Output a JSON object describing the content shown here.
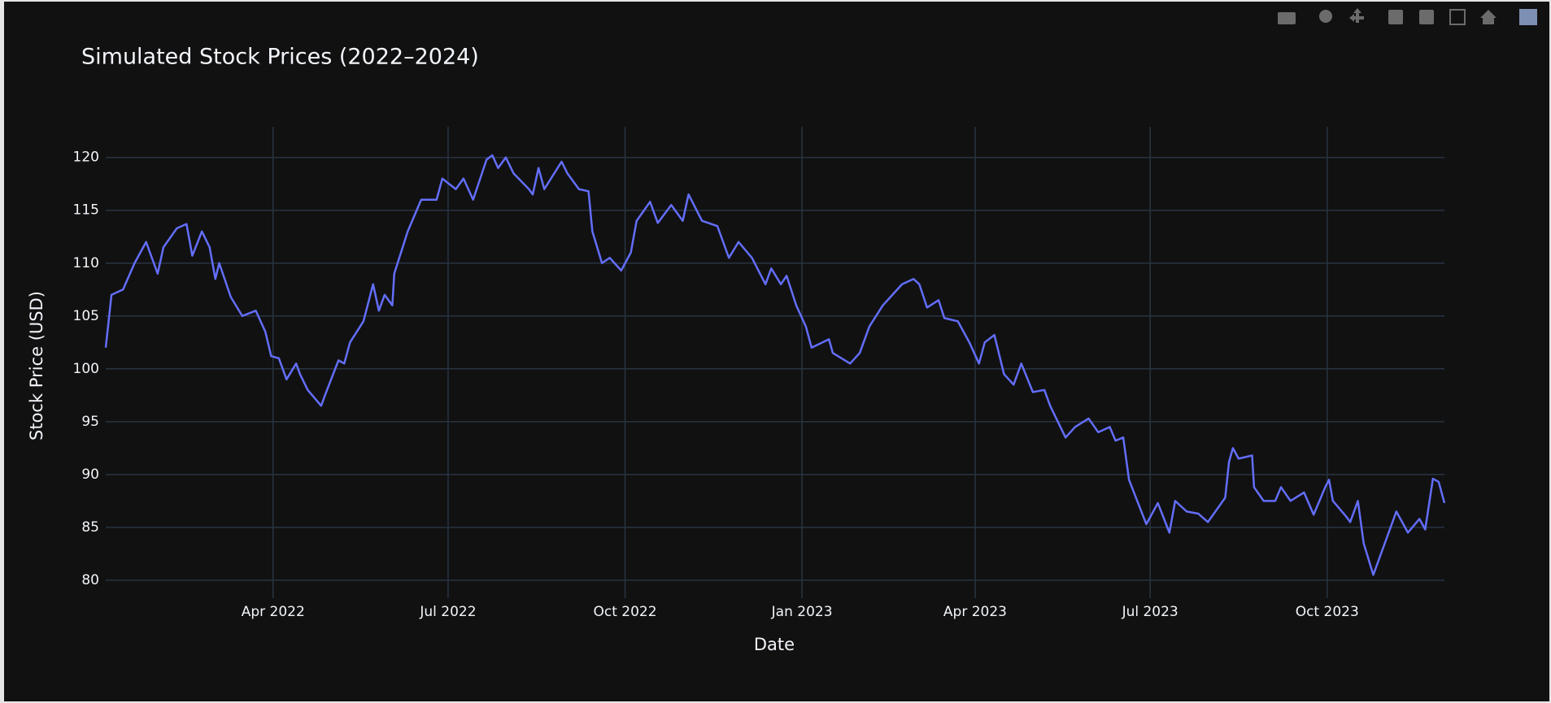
{
  "chart_data": {
    "type": "line",
    "title": "Simulated Stock Prices (2022–2024)",
    "x_label": "Date",
    "y_label": "Stock Price (USD)",
    "x": [
      "2022-01-04",
      "2022-01-07",
      "2022-01-13",
      "2022-01-19",
      "2022-01-25",
      "2022-01-31",
      "2022-02-03",
      "2022-02-10",
      "2022-02-15",
      "2022-02-18",
      "2022-02-23",
      "2022-02-27",
      "2022-03-02",
      "2022-03-04",
      "2022-03-10",
      "2022-03-16",
      "2022-03-23",
      "2022-03-28",
      "2022-03-31",
      "2022-04-04",
      "2022-04-08",
      "2022-04-13",
      "2022-04-15",
      "2022-04-19",
      "2022-04-26",
      "2022-04-28",
      "2022-05-05",
      "2022-05-08",
      "2022-05-11",
      "2022-05-18",
      "2022-05-23",
      "2022-05-26",
      "2022-05-29",
      "2022-06-02",
      "2022-06-03",
      "2022-06-10",
      "2022-06-17",
      "2022-06-25",
      "2022-06-28",
      "2022-07-05",
      "2022-07-09",
      "2022-07-14",
      "2022-07-21",
      "2022-07-24",
      "2022-07-27",
      "2022-07-31",
      "2022-08-04",
      "2022-08-12",
      "2022-08-14",
      "2022-08-17",
      "2022-08-20",
      "2022-08-29",
      "2022-09-01",
      "2022-09-07",
      "2022-09-12",
      "2022-09-14",
      "2022-09-19",
      "2022-09-23",
      "2022-09-29",
      "2022-10-04",
      "2022-10-07",
      "2022-10-14",
      "2022-10-18",
      "2022-10-25",
      "2022-10-31",
      "2022-11-03",
      "2022-11-10",
      "2022-11-18",
      "2022-11-24",
      "2022-11-29",
      "2022-12-06",
      "2022-12-13",
      "2022-12-16",
      "2022-12-21",
      "2022-12-24",
      "2022-12-29",
      "2023-01-03",
      "2023-01-06",
      "2023-01-15",
      "2023-01-17",
      "2023-01-26",
      "2023-01-31",
      "2023-02-05",
      "2023-02-12",
      "2023-02-17",
      "2023-02-22",
      "2023-02-28",
      "2023-03-03",
      "2023-03-07",
      "2023-03-13",
      "2023-03-16",
      "2023-03-23",
      "2023-03-29",
      "2023-04-03",
      "2023-04-06",
      "2023-04-11",
      "2023-04-16",
      "2023-04-21",
      "2023-04-25",
      "2023-05-01",
      "2023-05-07",
      "2023-05-10",
      "2023-05-18",
      "2023-05-23",
      "2023-05-30",
      "2023-06-04",
      "2023-06-10",
      "2023-06-13",
      "2023-06-17",
      "2023-06-20",
      "2023-06-29",
      "2023-07-05",
      "2023-07-11",
      "2023-07-14",
      "2023-07-20",
      "2023-07-26",
      "2023-07-31",
      "2023-08-09",
      "2023-08-11",
      "2023-08-13",
      "2023-08-16",
      "2023-08-23",
      "2023-08-24",
      "2023-08-29",
      "2023-09-04",
      "2023-09-07",
      "2023-09-12",
      "2023-09-19",
      "2023-09-24",
      "2023-09-30",
      "2023-10-02",
      "2023-10-04",
      "2023-10-11",
      "2023-10-13",
      "2023-10-17",
      "2023-10-20",
      "2023-10-25",
      "2023-10-30",
      "2023-11-04",
      "2023-11-06",
      "2023-11-12",
      "2023-11-18",
      "2023-11-21",
      "2023-11-25",
      "2023-11-28",
      "2023-12-01"
    ],
    "series": [
      {
        "color": "#636efa",
        "values": [
          102,
          107,
          107.5,
          110,
          112,
          109,
          111.5,
          113.3,
          113.7,
          110.7,
          113,
          111.5,
          108.5,
          110,
          106.8,
          105,
          105.5,
          103.5,
          101.2,
          101,
          99,
          100.5,
          99.5,
          98,
          96.5,
          97.5,
          100.8,
          100.5,
          102.5,
          104.5,
          108,
          105.5,
          107,
          106,
          109,
          113,
          116,
          116,
          118,
          117,
          118,
          116,
          119.8,
          120.2,
          119,
          120,
          118.5,
          117,
          116.5,
          119,
          117,
          119.6,
          118.5,
          117,
          116.8,
          113,
          110,
          110.5,
          109.3,
          111,
          114,
          115.8,
          113.8,
          115.5,
          114,
          116.5,
          114,
          113.5,
          110.5,
          112,
          110.5,
          108,
          109.5,
          108,
          108.8,
          106,
          104,
          102,
          102.8,
          101.5,
          100.5,
          101.5,
          104,
          106,
          107,
          108,
          108.5,
          108,
          105.8,
          106.5,
          104.8,
          104.5,
          102.5,
          100.5,
          102.5,
          103.2,
          99.5,
          98.5,
          100.5,
          97.8,
          98,
          96.5,
          93.5,
          94.5,
          95.3,
          94,
          94.5,
          93.2,
          93.5,
          89.5,
          85.3,
          87.3,
          84.5,
          87.5,
          86.5,
          86.3,
          85.5,
          87.8,
          91.2,
          92.5,
          91.5,
          91.8,
          88.8,
          87.5,
          87.5,
          88.8,
          87.5,
          88.3,
          86.2,
          88.8,
          89.5,
          87.5,
          86,
          85.5,
          87.5,
          83.5,
          80.5,
          83,
          85.5,
          86.5,
          84.5,
          85.8,
          84.8,
          89.6,
          89.3,
          87.3
        ]
      }
    ],
    "xlim": [
      "2022-01-04",
      "2023-12-01"
    ],
    "xticks": [
      {
        "value": "2022-04-01",
        "label": "Apr 2022"
      },
      {
        "value": "2022-07-01",
        "label": "Jul 2022"
      },
      {
        "value": "2022-10-01",
        "label": "Oct 2022"
      },
      {
        "value": "2023-01-01",
        "label": "Jan 2023"
      },
      {
        "value": "2023-04-01",
        "label": "Apr 2023"
      },
      {
        "value": "2023-07-01",
        "label": "Jul 2023"
      },
      {
        "value": "2023-10-01",
        "label": "Oct 2023"
      }
    ],
    "ylim": [
      78.3,
      122.9
    ],
    "yticks": [
      80,
      85,
      90,
      95,
      100,
      105,
      110,
      115,
      120
    ],
    "grid": true
  }
}
